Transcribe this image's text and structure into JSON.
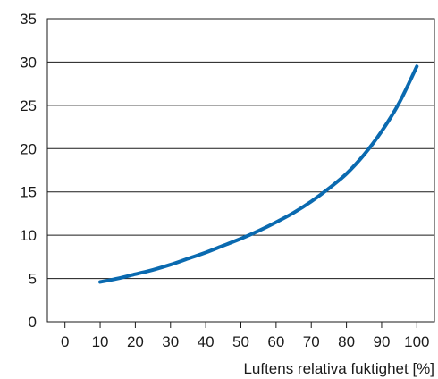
{
  "chart_data": {
    "type": "line",
    "title": "",
    "xlabel": "Luftens relativa fuktighet [%]",
    "ylabel": "",
    "xlim": [
      -5,
      105
    ],
    "ylim": [
      0,
      35
    ],
    "x_ticks": [
      0,
      10,
      20,
      30,
      40,
      50,
      60,
      70,
      80,
      90,
      100
    ],
    "y_ticks": [
      0,
      5,
      10,
      15,
      20,
      25,
      30,
      35
    ],
    "grid": "horizontal",
    "legend": "none",
    "series": [
      {
        "color": "#0a6ab0",
        "x": [
          10,
          15,
          20,
          25,
          30,
          35,
          40,
          45,
          50,
          55,
          60,
          65,
          70,
          75,
          80,
          85,
          90,
          95,
          100
        ],
        "y": [
          4.6,
          5.0,
          5.5,
          6.0,
          6.6,
          7.3,
          8.0,
          8.8,
          9.6,
          10.5,
          11.5,
          12.6,
          13.9,
          15.4,
          17.1,
          19.3,
          22.0,
          25.3,
          29.5
        ]
      }
    ]
  }
}
